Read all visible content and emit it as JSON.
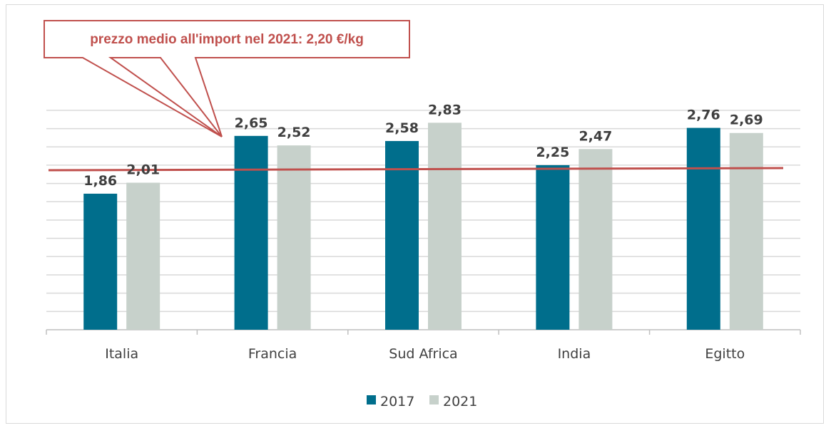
{
  "chart_data": {
    "type": "bar",
    "title": "",
    "xlabel": "",
    "ylabel": "",
    "categories": [
      "Italia",
      "Francia",
      "Sud Africa",
      "India",
      "Egitto"
    ],
    "series": [
      {
        "name": "2017",
        "values": [
          1.86,
          2.65,
          2.58,
          2.25,
          2.76
        ],
        "color": "#006e8c"
      },
      {
        "name": "2021",
        "values": [
          2.01,
          2.52,
          2.83,
          2.47,
          2.69
        ],
        "color": "#c7d1cb"
      }
    ],
    "value_labels": {
      "2017": [
        "1,86",
        "2,65",
        "2,58",
        "2,25",
        "2,76"
      ],
      "2021": [
        "2,01",
        "2,52",
        "2,83",
        "2,47",
        "2,69"
      ]
    },
    "reference_line": {
      "value": 2.2,
      "color": "#c0504d"
    },
    "annotation": "prezzo medio all'import nel 2021: 2,20 €/kg",
    "ylim": [
      0,
      3.0
    ],
    "grid": true,
    "legend": "bottom-center",
    "y_tick_labels_visible": false
  }
}
